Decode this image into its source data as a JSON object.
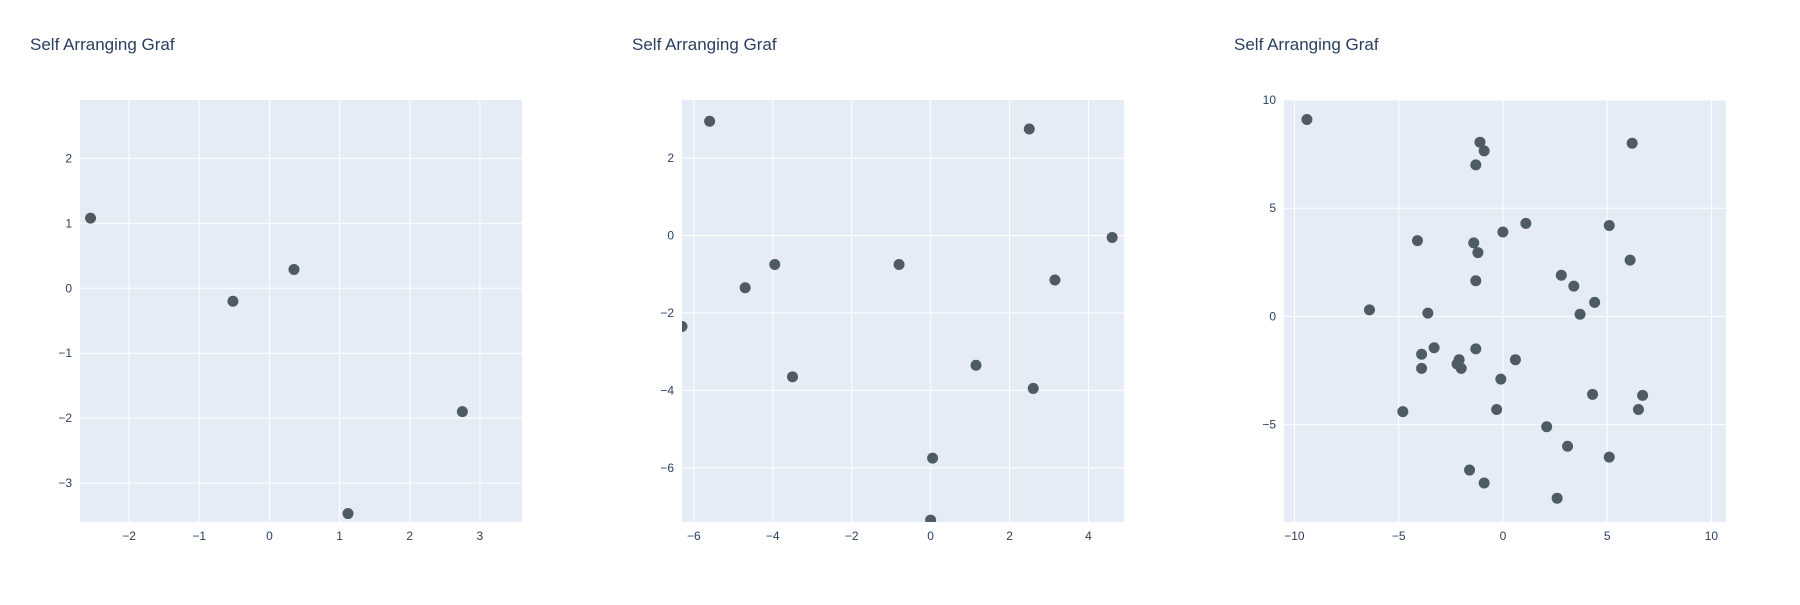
{
  "chart_data": [
    {
      "type": "scatter",
      "title": "Self Arranging Graf",
      "xlim": [
        -2.7,
        3.6
      ],
      "ylim": [
        -3.6,
        2.9
      ],
      "xticks": [
        -2,
        -1,
        0,
        1,
        2,
        3
      ],
      "yticks": [
        -3,
        -2,
        -1,
        0,
        1,
        2
      ],
      "grid": true,
      "marker_color": "#4f5b62",
      "plot_bg": "#e5ecf6",
      "points": [
        {
          "x": -2.55,
          "y": 1.08
        },
        {
          "x": -0.52,
          "y": -0.2
        },
        {
          "x": 0.35,
          "y": 0.29
        },
        {
          "x": 2.75,
          "y": -1.9
        },
        {
          "x": 1.12,
          "y": -3.47
        }
      ]
    },
    {
      "type": "scatter",
      "title": "Self Arranging Graf",
      "xlim": [
        -6.3,
        4.9
      ],
      "ylim": [
        -7.4,
        3.5
      ],
      "xticks": [
        -6,
        -4,
        -2,
        0,
        2,
        4
      ],
      "yticks": [
        -6,
        -4,
        -2,
        0,
        2
      ],
      "grid": true,
      "marker_color": "#4f5b62",
      "plot_bg": "#e5ecf6",
      "points": [
        {
          "x": -5.6,
          "y": 2.95
        },
        {
          "x": 2.5,
          "y": 2.75
        },
        {
          "x": 4.6,
          "y": -0.05
        },
        {
          "x": -4.7,
          "y": -1.35
        },
        {
          "x": -3.95,
          "y": -0.75
        },
        {
          "x": -0.8,
          "y": -0.75
        },
        {
          "x": 3.15,
          "y": -1.15
        },
        {
          "x": -6.3,
          "y": -2.35
        },
        {
          "x": -3.5,
          "y": -3.65
        },
        {
          "x": 1.15,
          "y": -3.35
        },
        {
          "x": 2.6,
          "y": -3.95
        },
        {
          "x": 0.05,
          "y": -5.75
        },
        {
          "x": 0.0,
          "y": -7.35
        }
      ]
    },
    {
      "type": "scatter",
      "title": "Self Arranging Graf",
      "xlim": [
        -10.5,
        10.7
      ],
      "ylim": [
        -9.5,
        10.0
      ],
      "xticks": [
        -10,
        -5,
        0,
        5,
        10
      ],
      "yticks": [
        -5,
        0,
        5,
        10
      ],
      "grid": true,
      "marker_color": "#4f5b62",
      "plot_bg": "#e5ecf6",
      "points": [
        {
          "x": -9.4,
          "y": 9.1
        },
        {
          "x": -1.1,
          "y": 8.05
        },
        {
          "x": -0.9,
          "y": 7.65
        },
        {
          "x": -1.3,
          "y": 7.0
        },
        {
          "x": 6.2,
          "y": 8.0
        },
        {
          "x": 1.1,
          "y": 4.3
        },
        {
          "x": 5.1,
          "y": 4.2
        },
        {
          "x": 0.0,
          "y": 3.9
        },
        {
          "x": -4.1,
          "y": 3.5
        },
        {
          "x": -1.4,
          "y": 3.4
        },
        {
          "x": -1.2,
          "y": 2.95
        },
        {
          "x": 6.1,
          "y": 2.6
        },
        {
          "x": 2.8,
          "y": 1.9
        },
        {
          "x": 3.4,
          "y": 1.4
        },
        {
          "x": -1.3,
          "y": 1.65
        },
        {
          "x": 4.4,
          "y": 0.65
        },
        {
          "x": -6.4,
          "y": 0.3
        },
        {
          "x": -3.6,
          "y": 0.15
        },
        {
          "x": 3.7,
          "y": 0.1
        },
        {
          "x": -3.3,
          "y": -1.45
        },
        {
          "x": -1.3,
          "y": -1.5
        },
        {
          "x": -3.9,
          "y": -1.75
        },
        {
          "x": -2.1,
          "y": -2.0
        },
        {
          "x": 0.6,
          "y": -2.0
        },
        {
          "x": -2.2,
          "y": -2.2
        },
        {
          "x": -3.9,
          "y": -2.4
        },
        {
          "x": -2.0,
          "y": -2.4
        },
        {
          "x": -0.1,
          "y": -2.9
        },
        {
          "x": 4.3,
          "y": -3.6
        },
        {
          "x": 6.7,
          "y": -3.65
        },
        {
          "x": -0.3,
          "y": -4.3
        },
        {
          "x": 6.5,
          "y": -4.3
        },
        {
          "x": -4.8,
          "y": -4.4
        },
        {
          "x": 2.1,
          "y": -5.1
        },
        {
          "x": 3.1,
          "y": -6.0
        },
        {
          "x": 5.1,
          "y": -6.5
        },
        {
          "x": -1.6,
          "y": -7.1
        },
        {
          "x": -0.9,
          "y": -7.7
        },
        {
          "x": 2.6,
          "y": -8.4
        }
      ]
    }
  ]
}
